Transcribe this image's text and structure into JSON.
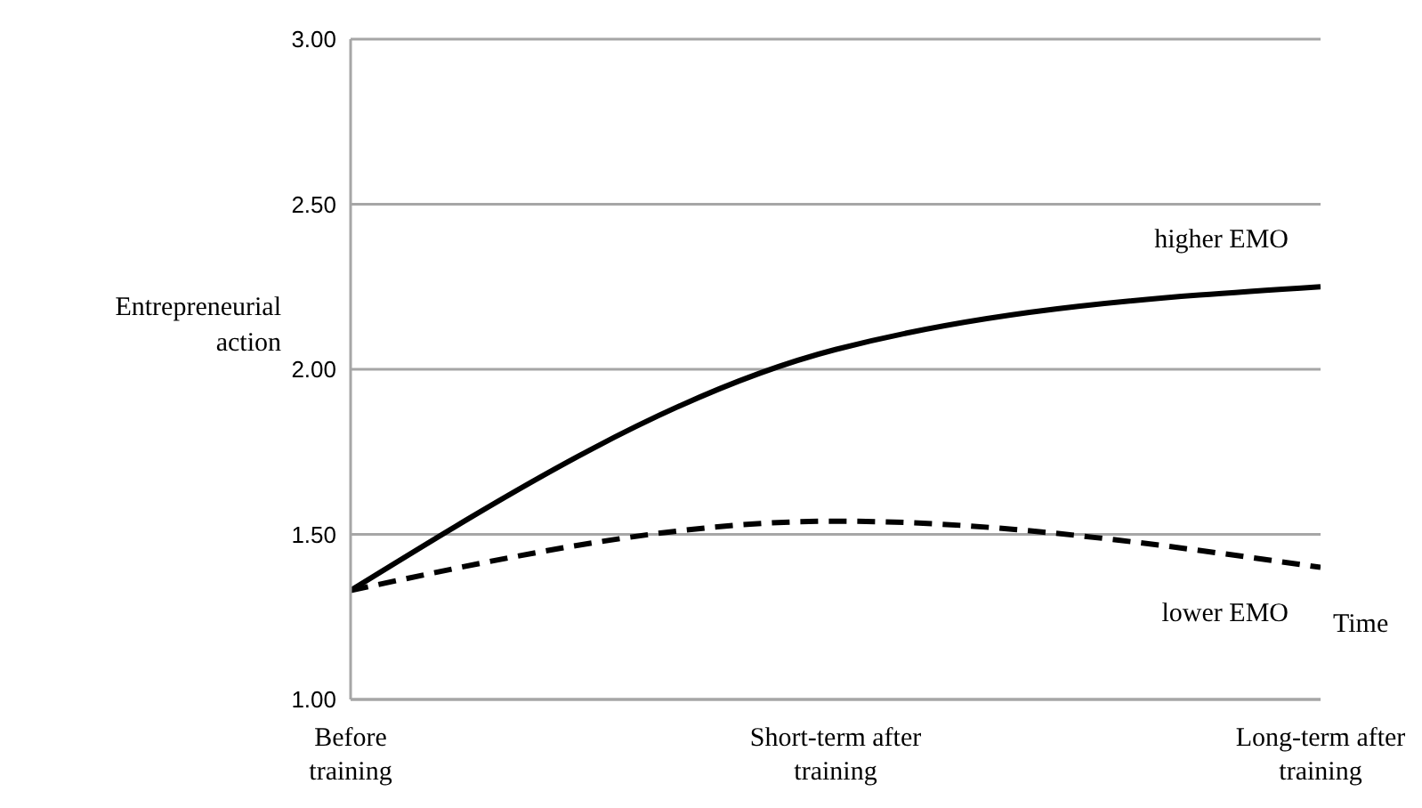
{
  "chart_data": {
    "type": "line",
    "xlabel": "Time",
    "ylabel": "Entrepreneurial action",
    "categories": [
      "Before training",
      "Short-term after training",
      "Long-term after training"
    ],
    "series": [
      {
        "name": "higher EMO",
        "color": "#000000",
        "values": [
          1.33,
          2.06,
          2.25
        ],
        "line_style": "solid"
      },
      {
        "name": "lower EMO",
        "color": "#000000",
        "values": [
          1.33,
          1.54,
          1.4
        ],
        "line_style": "dashed"
      }
    ],
    "ylim": [
      1,
      3
    ],
    "yticks": [
      {
        "value": 1,
        "label": "1.00"
      },
      {
        "value": 1.5,
        "label": "1.50"
      },
      {
        "value": 2,
        "label": "2.00"
      },
      {
        "value": 2.5,
        "label": "2.50"
      },
      {
        "value": 3,
        "label": "3.00"
      }
    ],
    "grid": "y",
    "marker": "none"
  }
}
